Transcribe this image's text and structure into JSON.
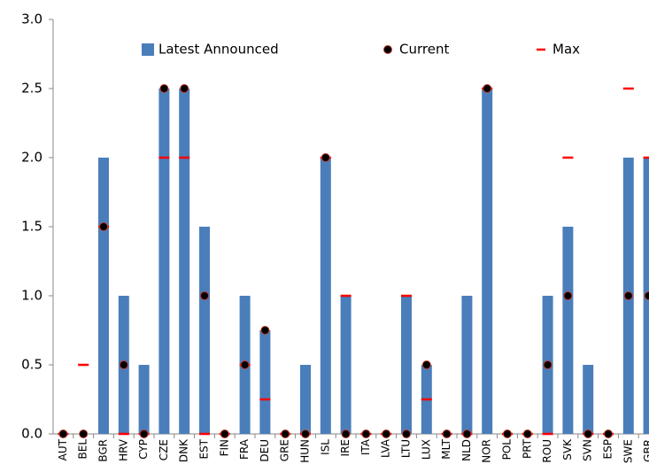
{
  "chart_data": {
    "type": "bar",
    "categories": [
      "AUT",
      "BEL",
      "BGR",
      "HRV",
      "CYP",
      "CZE",
      "DNK",
      "EST",
      "FIN",
      "FRA",
      "DEU",
      "GRE",
      "HUN",
      "ISL",
      "IRE",
      "ITA",
      "LVA",
      "LTU",
      "LUX",
      "MLT",
      "NLD",
      "NOR",
      "POL",
      "PRT",
      "ROU",
      "SVK",
      "SVN",
      "ESP",
      "SWE",
      "GBR"
    ],
    "series": [
      {
        "name": "Latest Announced",
        "color": "#4a7ebb",
        "mark": "bar",
        "values": [
          0,
          0,
          2,
          1,
          0.5,
          2.5,
          2.5,
          1.5,
          0,
          1,
          0.75,
          0,
          0.5,
          2,
          1,
          0,
          0,
          1,
          0.5,
          0,
          1,
          2.5,
          0,
          0,
          1,
          1.5,
          0.5,
          0,
          2,
          2
        ]
      },
      {
        "name": "Current",
        "color": "#000000",
        "mark": "dot",
        "values": [
          0,
          0,
          1.5,
          0.5,
          0,
          2.5,
          2.5,
          1,
          0,
          0.5,
          0.75,
          0,
          0,
          2,
          0,
          0,
          0,
          0,
          0.5,
          0,
          0,
          2.5,
          0,
          0,
          0.5,
          1,
          0,
          0,
          1,
          1
        ]
      },
      {
        "name": "Max",
        "color": "#ff0000",
        "mark": "dash",
        "values": [
          0,
          0.5,
          1.5,
          0,
          0,
          2,
          2,
          0,
          0,
          0.5,
          0.25,
          0,
          0,
          2,
          1,
          0,
          0,
          1,
          0.25,
          0,
          0,
          2.5,
          0,
          0,
          0,
          2,
          0,
          0,
          2.5,
          2
        ]
      }
    ],
    "ylim": [
      0,
      3
    ],
    "yticks": [
      {
        "value": 0,
        "label": "0.0"
      },
      {
        "value": 0.5,
        "label": "0.5"
      },
      {
        "value": 1,
        "label": "1.0"
      },
      {
        "value": 1.5,
        "label": "1.5"
      },
      {
        "value": 2,
        "label": "2.0"
      },
      {
        "value": 2.5,
        "label": "2.5"
      },
      {
        "value": 3,
        "label": "3.0"
      }
    ],
    "grid": false
  }
}
